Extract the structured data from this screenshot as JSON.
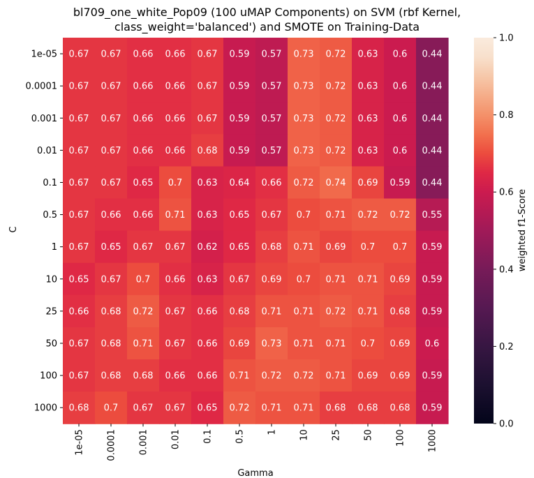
{
  "chart_data": {
    "type": "heatmap",
    "title_lines": [
      "bl709_one_white_Pop09 (100 uMAP Components) on SVM (rbf Kernel,",
      "class_weight='balanced') and SMOTE on Training-Data"
    ],
    "xlabel": "Gamma",
    "ylabel": "C",
    "x_categories": [
      "1e-05",
      "0.0001",
      "0.001",
      "0.01",
      "0.1",
      "0.5",
      "1",
      "10",
      "25",
      "50",
      "100",
      "1000"
    ],
    "y_categories": [
      "1e-05",
      "0.0001",
      "0.001",
      "0.01",
      "0.1",
      "0.5",
      "1",
      "10",
      "25",
      "50",
      "100",
      "1000"
    ],
    "values": [
      [
        0.67,
        0.67,
        0.66,
        0.66,
        0.67,
        0.59,
        0.57,
        0.73,
        0.72,
        0.63,
        0.6,
        0.44
      ],
      [
        0.67,
        0.67,
        0.66,
        0.66,
        0.67,
        0.59,
        0.57,
        0.73,
        0.72,
        0.63,
        0.6,
        0.44
      ],
      [
        0.67,
        0.67,
        0.66,
        0.66,
        0.67,
        0.59,
        0.57,
        0.73,
        0.72,
        0.63,
        0.6,
        0.44
      ],
      [
        0.67,
        0.67,
        0.66,
        0.66,
        0.68,
        0.59,
        0.57,
        0.73,
        0.72,
        0.63,
        0.6,
        0.44
      ],
      [
        0.67,
        0.67,
        0.65,
        0.7,
        0.63,
        0.64,
        0.66,
        0.72,
        0.74,
        0.69,
        0.59,
        0.44
      ],
      [
        0.67,
        0.66,
        0.66,
        0.71,
        0.63,
        0.65,
        0.67,
        0.7,
        0.71,
        0.72,
        0.72,
        0.55
      ],
      [
        0.67,
        0.65,
        0.67,
        0.67,
        0.62,
        0.65,
        0.68,
        0.71,
        0.69,
        0.7,
        0.7,
        0.59
      ],
      [
        0.65,
        0.67,
        0.7,
        0.66,
        0.63,
        0.67,
        0.69,
        0.7,
        0.71,
        0.71,
        0.69,
        0.59
      ],
      [
        0.66,
        0.68,
        0.72,
        0.67,
        0.66,
        0.68,
        0.71,
        0.71,
        0.72,
        0.71,
        0.68,
        0.59
      ],
      [
        0.67,
        0.68,
        0.71,
        0.67,
        0.66,
        0.69,
        0.73,
        0.71,
        0.71,
        0.7,
        0.69,
        0.6
      ],
      [
        0.67,
        0.68,
        0.68,
        0.66,
        0.66,
        0.71,
        0.72,
        0.72,
        0.71,
        0.69,
        0.69,
        0.59
      ],
      [
        0.68,
        0.7,
        0.67,
        0.67,
        0.65,
        0.72,
        0.71,
        0.71,
        0.68,
        0.68,
        0.68,
        0.59
      ]
    ],
    "colorbar": {
      "label": "weighted f1-Score",
      "range": [
        0.0,
        1.0
      ],
      "ticks": [
        "0.0",
        "0.2",
        "0.4",
        "0.6",
        "0.8",
        "1.0"
      ],
      "colormap": "rocket"
    }
  }
}
